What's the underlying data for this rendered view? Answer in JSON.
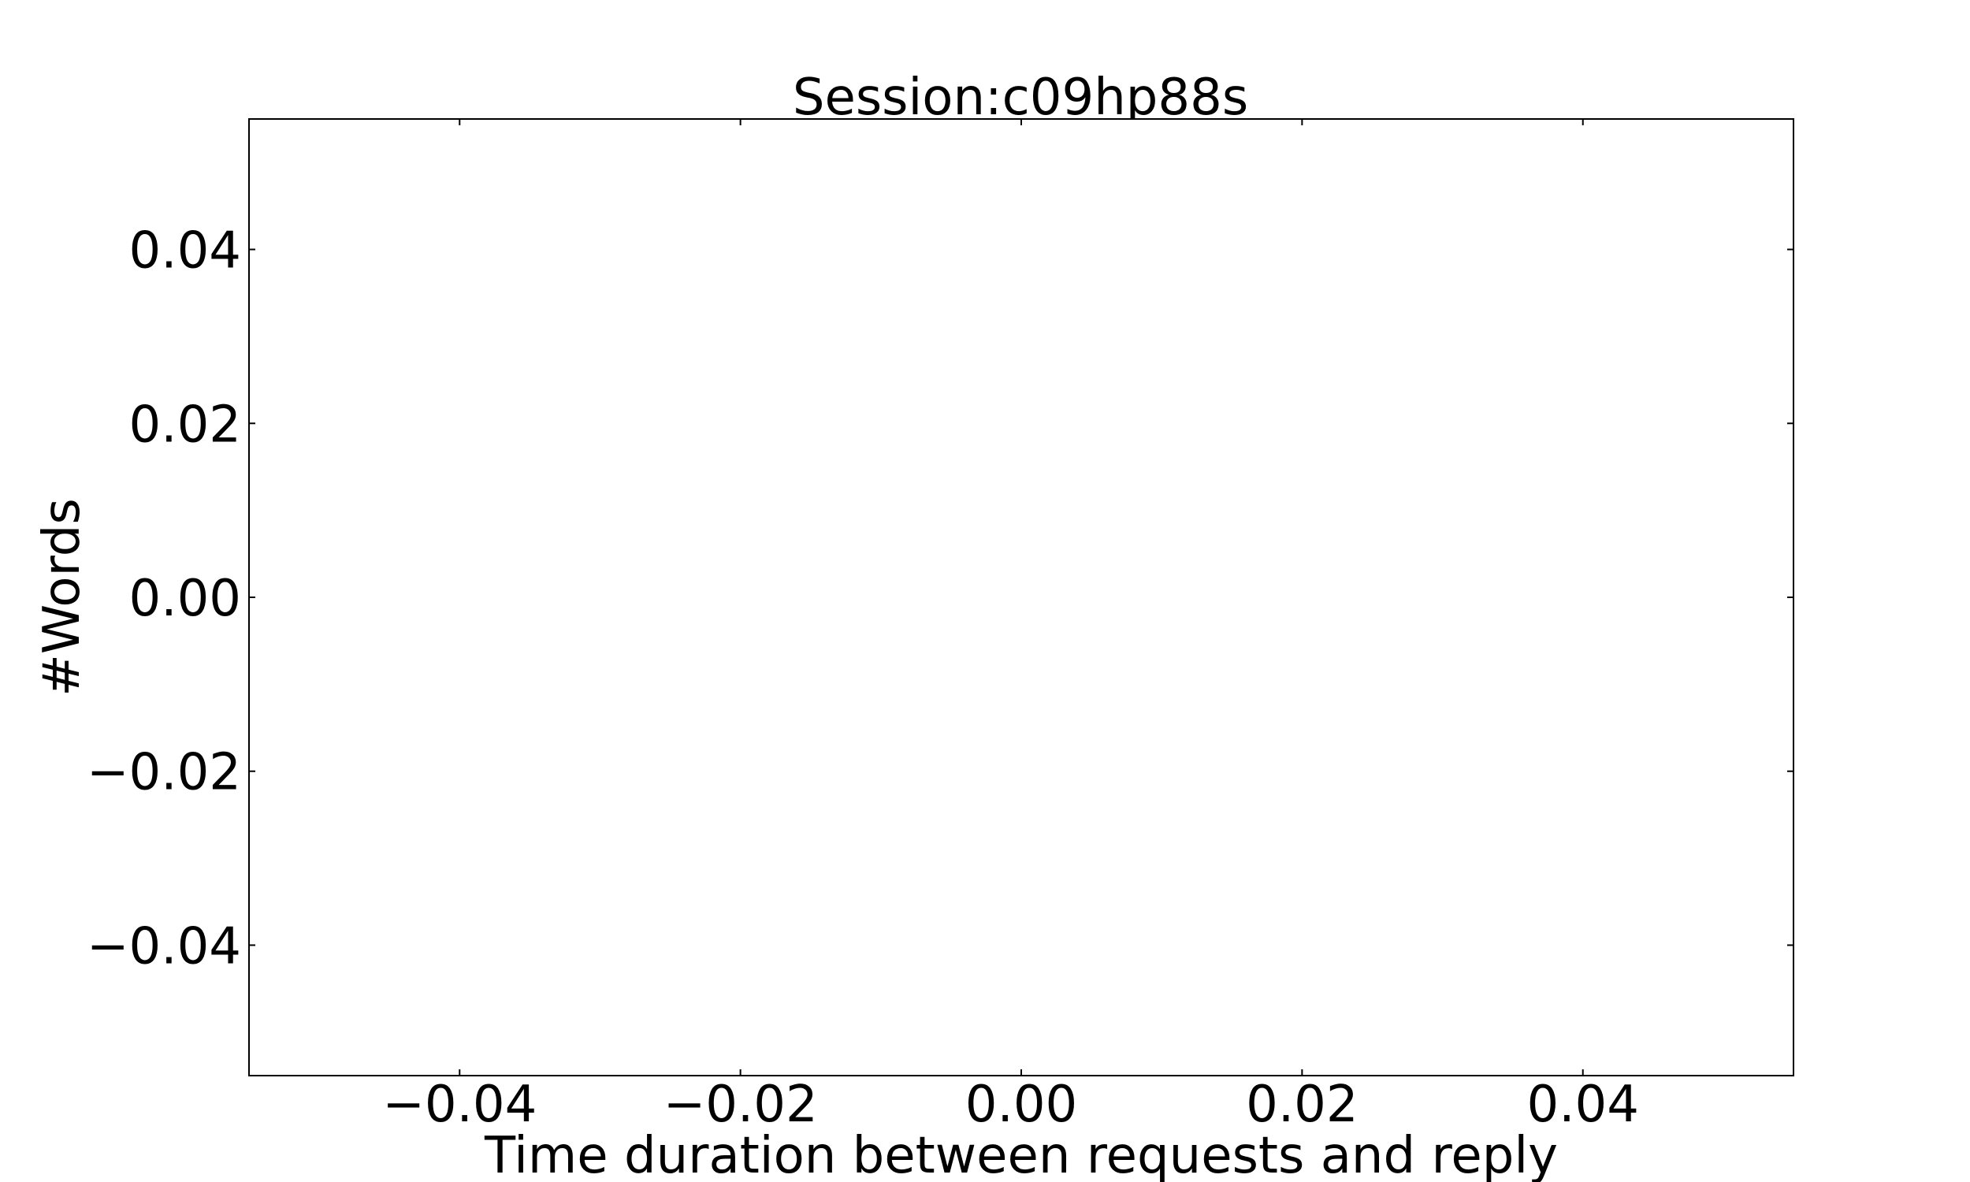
{
  "chart_data": {
    "type": "scatter",
    "title": "Session:c09hp88s",
    "xlabel": "Time duration between requests and reply",
    "ylabel": "#Words",
    "xlim": [
      -0.055,
      0.055
    ],
    "ylim": [
      -0.055,
      0.055
    ],
    "xticks": [
      -0.04,
      -0.02,
      0.0,
      0.02,
      0.04
    ],
    "yticks": [
      -0.04,
      -0.02,
      0.0,
      0.02,
      0.04
    ],
    "xtick_labels": [
      "−0.04",
      "−0.02",
      "0.00",
      "0.02",
      "0.04"
    ],
    "ytick_labels": [
      "−0.04",
      "−0.02",
      "0.00",
      "0.02",
      "0.04"
    ],
    "grid": false,
    "series": [
      {
        "name": "",
        "x": [],
        "y": []
      }
    ]
  }
}
